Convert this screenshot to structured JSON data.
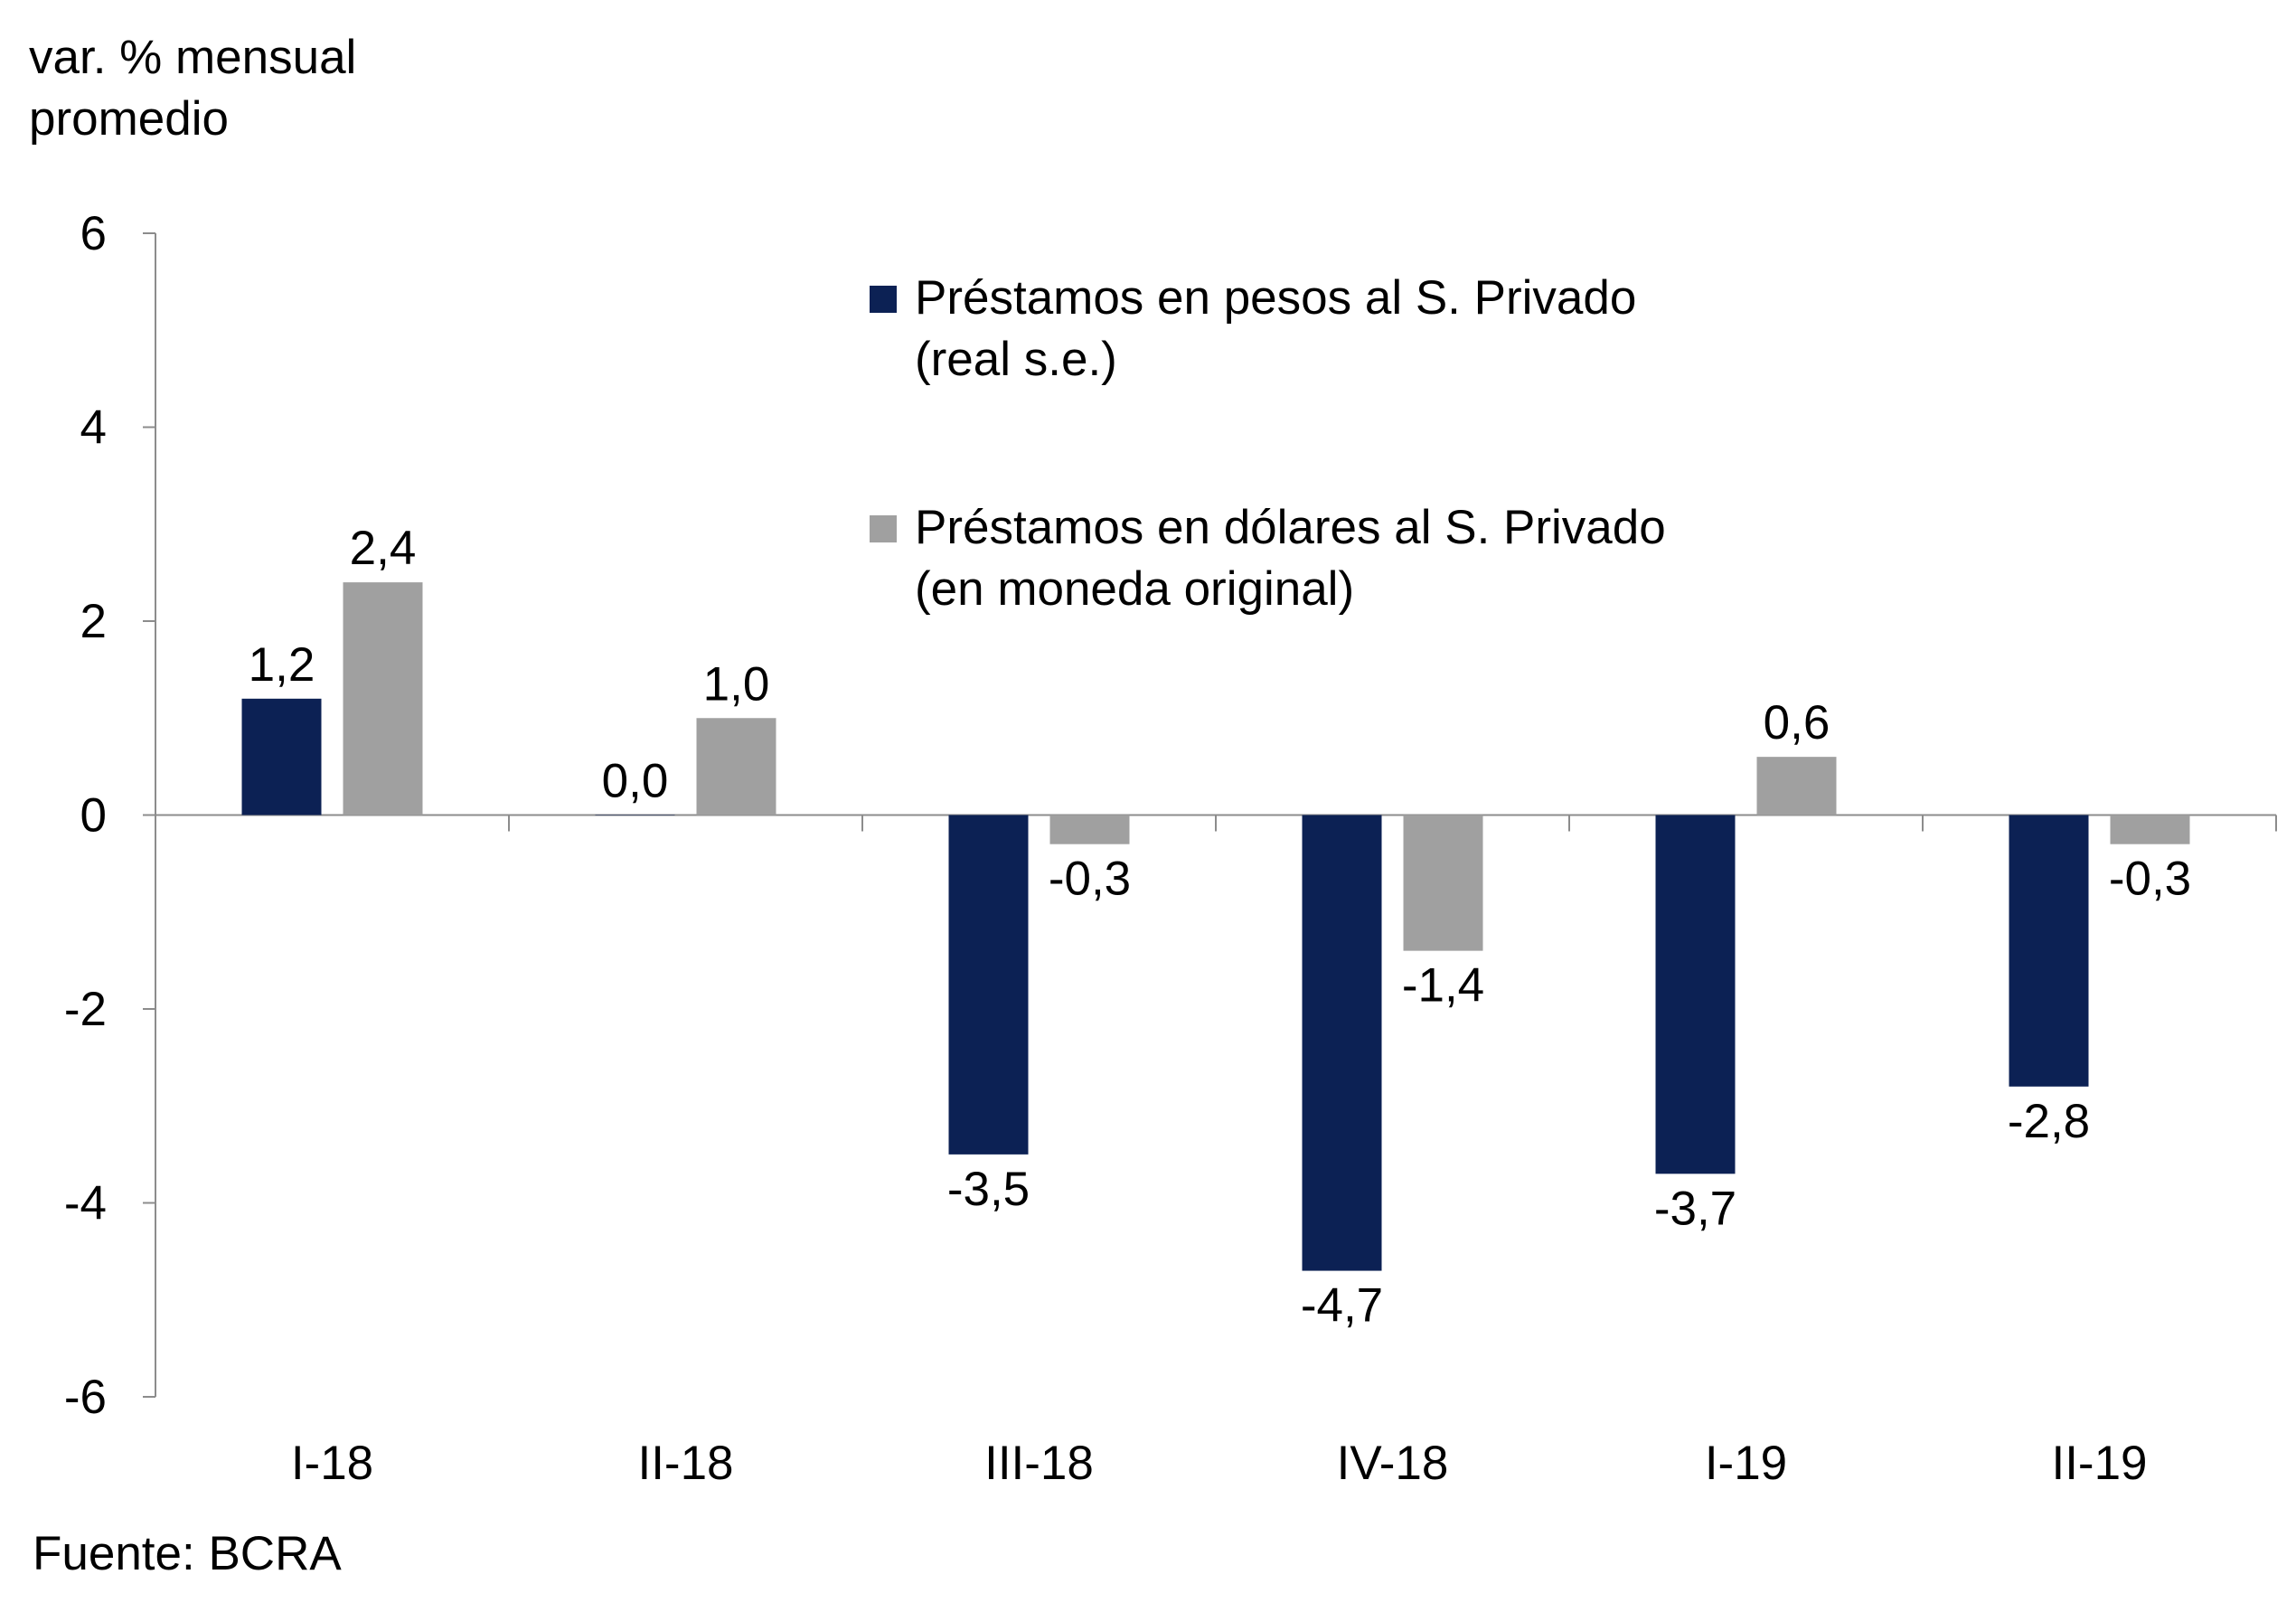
{
  "chart_data": {
    "type": "bar",
    "ylabel_line1": "var. % mensual",
    "ylabel_line2": "promedio",
    "source": "Fuente: BCRA",
    "categories": [
      "I-18",
      "II-18",
      "III-18",
      "IV-18",
      "I-19",
      "II-19"
    ],
    "ylim": [
      -6,
      6
    ],
    "yticks": [
      "6",
      "4",
      "2",
      "0",
      "-2",
      "-4",
      "-6"
    ],
    "ytick_values": [
      6,
      4,
      2,
      0,
      -2,
      -4,
      -6
    ],
    "series": [
      {
        "name": "Préstamos en pesos al S. Privado",
        "name_line2": "(real s.e.)",
        "color": "#0c2154",
        "values": [
          1.2,
          0.0,
          -3.5,
          -4.7,
          -3.7,
          -2.8
        ],
        "labels": [
          "1,2",
          "0,0",
          "-3,5",
          "-4,7",
          "-3,7",
          "-2,8"
        ]
      },
      {
        "name": "Préstamos en dólares al S. Privado",
        "name_line2": "(en moneda original)",
        "color": "#a0a0a0",
        "values": [
          2.4,
          1.0,
          -0.3,
          -1.4,
          0.6,
          -0.3
        ],
        "labels": [
          "2,4",
          "1,0",
          "-0,3",
          "-1,4",
          "0,6",
          "-0,3"
        ]
      }
    ]
  }
}
